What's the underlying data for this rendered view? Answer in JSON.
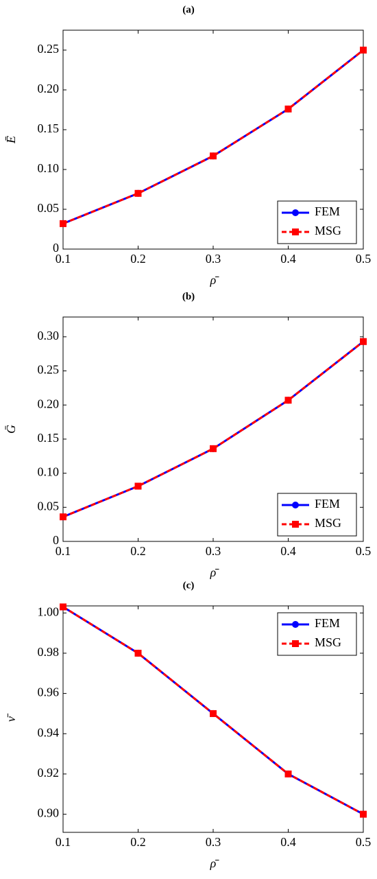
{
  "chart_data": [
    {
      "type": "line",
      "title": "(a)",
      "xlabel": "ρ̄",
      "ylabel": "Ē",
      "x": [
        0.1,
        0.2,
        0.3,
        0.4,
        0.5
      ],
      "series": [
        {
          "name": "FEM",
          "color": "#0000ff",
          "values": [
            0.032,
            0.07,
            0.117,
            0.176,
            0.25
          ]
        },
        {
          "name": "MSG",
          "color": "#ff0000",
          "values": [
            0.032,
            0.07,
            0.117,
            0.176,
            0.25
          ]
        }
      ],
      "xlim": [
        0.1,
        0.5
      ],
      "xticks": [
        0.1,
        0.2,
        0.3,
        0.4,
        0.5
      ],
      "ylim": [
        0,
        0.275
      ],
      "yticks": [
        0,
        0.05,
        {
          "value": 0.1,
          "label": "0.10"
        },
        0.15,
        {
          "value": 0.2,
          "label": "0.20"
        },
        0.25
      ],
      "legend": "lower right"
    },
    {
      "type": "line",
      "title": "(b)",
      "xlabel": "ρ̄",
      "ylabel": "Ḡ",
      "x": [
        0.1,
        0.2,
        0.3,
        0.4,
        0.5
      ],
      "series": [
        {
          "name": "FEM",
          "color": "#0000ff",
          "values": [
            0.036,
            0.081,
            0.136,
            0.207,
            0.293
          ]
        },
        {
          "name": "MSG",
          "color": "#ff0000",
          "values": [
            0.036,
            0.081,
            0.136,
            0.207,
            0.293
          ]
        }
      ],
      "xlim": [
        0.1,
        0.5
      ],
      "xticks": [
        0.1,
        0.2,
        0.3,
        0.4,
        0.5
      ],
      "ylim": [
        0,
        0.329
      ],
      "yticks": [
        0,
        0.05,
        {
          "value": 0.1,
          "label": "0.10"
        },
        0.15,
        {
          "value": 0.2,
          "label": "0.20"
        },
        0.25,
        {
          "value": 0.3,
          "label": "0.30"
        }
      ],
      "legend": "lower right"
    },
    {
      "type": "line",
      "title": "(c)",
      "xlabel": "ρ̄",
      "ylabel": "ν̄",
      "x": [
        0.1,
        0.2,
        0.3,
        0.4,
        0.5
      ],
      "series": [
        {
          "name": "FEM",
          "color": "#0000ff",
          "values": [
            1.003,
            0.98,
            0.95,
            0.92,
            0.9
          ]
        },
        {
          "name": "MSG",
          "color": "#ff0000",
          "values": [
            1.003,
            0.98,
            0.95,
            0.92,
            0.9
          ]
        }
      ],
      "xlim": [
        0.1,
        0.5
      ],
      "xticks": [
        0.1,
        0.2,
        0.3,
        0.4,
        0.5
      ],
      "ylim": [
        0.891,
        1.0035
      ],
      "yticks": [
        {
          "value": 0.9,
          "label": "0.90"
        },
        0.92,
        0.94,
        0.96,
        0.98,
        {
          "value": 1.0,
          "label": "1.00"
        }
      ],
      "legend": "upper right"
    }
  ]
}
